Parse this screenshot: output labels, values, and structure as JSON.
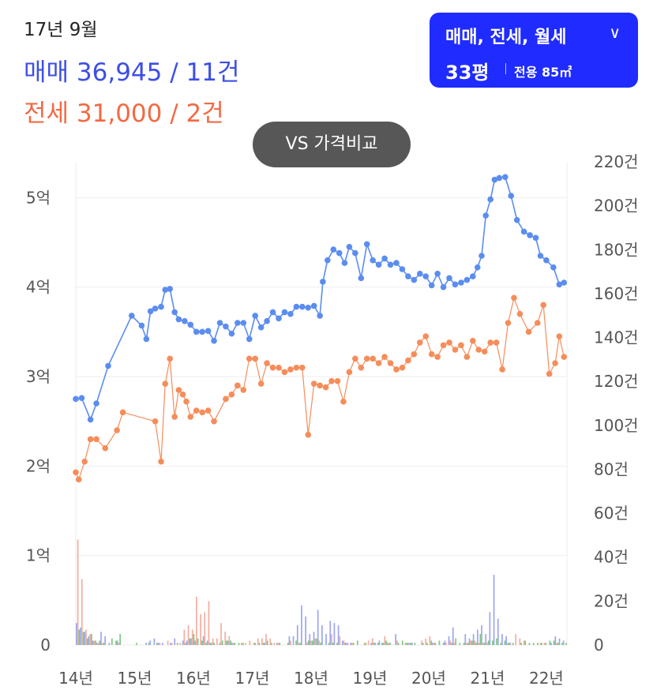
{
  "header": {
    "date_label": "17년 9월",
    "sale_summary": "매매 36,945 / 11건",
    "jeonse_summary": "전세 31,000 / 2건"
  },
  "type_selector": {
    "label": "매매, 전세, 월세",
    "area_main": "33평",
    "area_sub": "전용 85㎡"
  },
  "compare_button": {
    "label": "VS 가격비교"
  },
  "colors": {
    "sale": "#5b8def",
    "jeonse": "#f58d5a",
    "volume_sale": "#8c98ee",
    "volume_jeonse": "#f2a090",
    "volume_monthly": "#6bc06b",
    "grid": "#eeeeee",
    "selector_bg": "#1f2bff",
    "compare_bg": "#575757"
  },
  "chart_data": {
    "type": "line",
    "x_ticks": [
      "14년",
      "15년",
      "16년",
      "17년",
      "18년",
      "19년",
      "20년",
      "21년",
      "22년"
    ],
    "x_range": [
      2014.0,
      2022.35
    ],
    "y_left_ticks": [
      "0",
      "1억",
      "2억",
      "3억",
      "4억",
      "5억"
    ],
    "y_left_range": [
      0,
      5.4
    ],
    "y_right_ticks": [
      "0",
      "20건",
      "40건",
      "60건",
      "80건",
      "100건",
      "120건",
      "140건",
      "160건",
      "180건",
      "200건",
      "220건"
    ],
    "y_right_range": [
      0,
      220
    ],
    "grid": true,
    "series": [
      {
        "name": "매매",
        "x": [
          2014.0,
          2014.1,
          2014.25,
          2014.35,
          2014.55,
          2014.95,
          2015.12,
          2015.2,
          2015.27,
          2015.35,
          2015.45,
          2015.52,
          2015.6,
          2015.68,
          2015.75,
          2015.85,
          2015.95,
          2016.05,
          2016.15,
          2016.25,
          2016.35,
          2016.45,
          2016.55,
          2016.65,
          2016.75,
          2016.85,
          2016.95,
          2017.05,
          2017.15,
          2017.25,
          2017.35,
          2017.45,
          2017.55,
          2017.65,
          2017.75,
          2017.85,
          2017.95,
          2018.05,
          2018.15,
          2018.2,
          2018.28,
          2018.38,
          2018.48,
          2018.57,
          2018.65,
          2018.75,
          2018.85,
          2018.95,
          2019.05,
          2019.15,
          2019.25,
          2019.35,
          2019.45,
          2019.55,
          2019.65,
          2019.75,
          2019.85,
          2019.95,
          2020.05,
          2020.15,
          2020.25,
          2020.35,
          2020.45,
          2020.55,
          2020.65,
          2020.75,
          2020.83,
          2020.9,
          2020.97,
          2021.05,
          2021.12,
          2021.2,
          2021.3,
          2021.4,
          2021.5,
          2021.62,
          2021.72,
          2021.82,
          2021.9,
          2022.0,
          2022.12,
          2022.22,
          2022.3
        ],
        "values": [
          2.75,
          2.76,
          2.52,
          2.7,
          3.12,
          3.68,
          3.57,
          3.42,
          3.73,
          3.76,
          3.78,
          3.97,
          3.98,
          3.72,
          3.64,
          3.62,
          3.58,
          3.5,
          3.5,
          3.51,
          3.4,
          3.6,
          3.56,
          3.48,
          3.6,
          3.6,
          3.42,
          3.68,
          3.55,
          3.62,
          3.72,
          3.65,
          3.72,
          3.7,
          3.78,
          3.78,
          3.77,
          3.79,
          3.68,
          4.06,
          4.3,
          4.42,
          4.38,
          4.27,
          4.45,
          4.38,
          4.1,
          4.48,
          4.3,
          4.25,
          4.32,
          4.25,
          4.27,
          4.2,
          4.12,
          4.08,
          4.15,
          4.12,
          4.02,
          4.15,
          4.0,
          4.1,
          4.03,
          4.05,
          4.08,
          4.12,
          4.22,
          4.35,
          4.8,
          4.98,
          5.2,
          5.22,
          5.23,
          5.02,
          4.75,
          4.62,
          4.58,
          4.55,
          4.35,
          4.3,
          4.22,
          4.03,
          4.05
        ]
      },
      {
        "name": "전세",
        "x": [
          2014.0,
          2014.05,
          2014.15,
          2014.25,
          2014.35,
          2014.5,
          2014.7,
          2014.8,
          2015.35,
          2015.45,
          2015.52,
          2015.6,
          2015.68,
          2015.75,
          2015.82,
          2015.88,
          2015.95,
          2016.05,
          2016.15,
          2016.25,
          2016.35,
          2016.55,
          2016.65,
          2016.75,
          2016.85,
          2016.95,
          2017.05,
          2017.15,
          2017.25,
          2017.35,
          2017.45,
          2017.55,
          2017.65,
          2017.75,
          2017.85,
          2017.95,
          2018.05,
          2018.15,
          2018.25,
          2018.35,
          2018.45,
          2018.55,
          2018.65,
          2018.75,
          2018.85,
          2018.95,
          2019.05,
          2019.15,
          2019.25,
          2019.35,
          2019.45,
          2019.55,
          2019.65,
          2019.75,
          2019.85,
          2019.95,
          2020.05,
          2020.15,
          2020.25,
          2020.35,
          2020.45,
          2020.55,
          2020.65,
          2020.75,
          2020.85,
          2020.95,
          2021.05,
          2021.15,
          2021.25,
          2021.35,
          2021.45,
          2021.55,
          2021.7,
          2021.85,
          2021.95,
          2022.05,
          2022.15,
          2022.22,
          2022.3
        ],
        "values": [
          1.93,
          1.85,
          2.05,
          2.3,
          2.3,
          2.2,
          2.4,
          2.6,
          2.5,
          2.05,
          2.92,
          3.2,
          2.55,
          2.85,
          2.8,
          2.72,
          2.55,
          2.62,
          2.6,
          2.62,
          2.5,
          2.75,
          2.8,
          2.9,
          2.85,
          3.2,
          3.2,
          2.92,
          3.15,
          3.1,
          3.1,
          3.05,
          3.08,
          3.1,
          3.1,
          2.35,
          2.92,
          2.9,
          2.88,
          2.95,
          2.95,
          2.72,
          3.05,
          3.2,
          3.1,
          3.2,
          3.2,
          3.15,
          3.22,
          3.15,
          3.08,
          3.1,
          3.18,
          3.25,
          3.38,
          3.45,
          3.25,
          3.22,
          3.35,
          3.38,
          3.3,
          3.35,
          3.22,
          3.4,
          3.3,
          3.28,
          3.38,
          3.38,
          3.08,
          3.6,
          3.88,
          3.7,
          3.5,
          3.6,
          3.8,
          3.03,
          3.15,
          3.45,
          3.22
        ]
      }
    ],
    "volume": {
      "axis": "right",
      "bins": 120,
      "sale": [
        10,
        8,
        6,
        4,
        2,
        1,
        6,
        4,
        1,
        0,
        2,
        0,
        0,
        0,
        0,
        0,
        0,
        1,
        2,
        3,
        1,
        1,
        0,
        1,
        3,
        0,
        2,
        2,
        3,
        2,
        0,
        4,
        2,
        1,
        0,
        1,
        0,
        2,
        1,
        0,
        0,
        0,
        0,
        0,
        0,
        0,
        1,
        0,
        0,
        1,
        0,
        0,
        4,
        4,
        9,
        18,
        13,
        5,
        6,
        16,
        9,
        5,
        11,
        10,
        9,
        2,
        1,
        1,
        0,
        0,
        0,
        0,
        1,
        1,
        2,
        1,
        1,
        0,
        5,
        0,
        0,
        1,
        1,
        0,
        0,
        0,
        0,
        1,
        0,
        0,
        2,
        4,
        8,
        0,
        0,
        5,
        3,
        5,
        7,
        9,
        5,
        15,
        32,
        12,
        5,
        4,
        1,
        0,
        0,
        0,
        0,
        0,
        0,
        0,
        0,
        0,
        1,
        4,
        3,
        2
      ],
      "jeonse": [
        48,
        30,
        7,
        5,
        2,
        1,
        1,
        0,
        0,
        0,
        1,
        0,
        0,
        0,
        0,
        0,
        0,
        0,
        0,
        0,
        1,
        0,
        2,
        1,
        0,
        1,
        7,
        9,
        7,
        22,
        14,
        15,
        20,
        3,
        3,
        10,
        6,
        4,
        1,
        0,
        1,
        1,
        2,
        1,
        3,
        3,
        5,
        3,
        1,
        1,
        0,
        0,
        2,
        0,
        1,
        0,
        1,
        2,
        3,
        2,
        0,
        0,
        5,
        0,
        4,
        2,
        1,
        1,
        0,
        0,
        1,
        2,
        3,
        0,
        0,
        4,
        1,
        0,
        2,
        0,
        1,
        1,
        0,
        0,
        2,
        3,
        4,
        1,
        0,
        0,
        1,
        2,
        1,
        0,
        0,
        1,
        2,
        2,
        1,
        1,
        1,
        0,
        0,
        0,
        0,
        1,
        0,
        5,
        3,
        2,
        0,
        0,
        0,
        1,
        1,
        0,
        0,
        1,
        0,
        0
      ],
      "monthly": [
        7,
        6,
        3,
        5,
        2,
        2,
        1,
        0,
        3,
        2,
        5,
        0,
        0,
        0,
        1,
        0,
        0,
        1,
        0,
        1,
        0,
        0,
        0,
        0,
        1,
        0,
        1,
        3,
        5,
        3,
        2,
        1,
        1,
        1,
        0,
        2,
        2,
        2,
        1,
        1,
        1,
        0,
        0,
        1,
        1,
        1,
        2,
        1,
        0,
        1,
        0,
        1,
        0,
        2,
        1,
        0,
        2,
        2,
        3,
        1,
        0,
        1,
        1,
        1,
        0,
        1,
        0,
        1,
        2,
        0,
        1,
        0,
        1,
        1,
        1,
        2,
        1,
        0,
        1,
        2,
        1,
        1,
        1,
        0,
        1,
        1,
        2,
        1,
        2,
        1,
        0,
        1,
        3,
        1,
        1,
        1,
        2,
        1,
        5,
        1,
        2,
        2,
        3,
        1,
        2,
        1,
        1,
        0,
        1,
        2,
        1,
        1,
        1,
        1,
        1,
        2,
        2,
        1,
        1,
        1
      ]
    }
  }
}
